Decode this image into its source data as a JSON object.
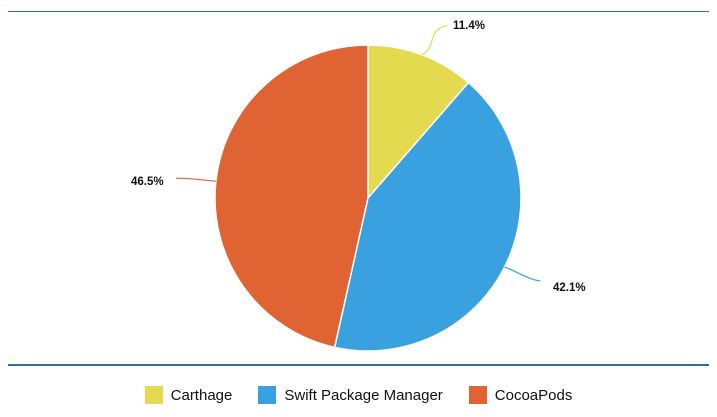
{
  "chart_data": {
    "type": "pie",
    "title": "",
    "start_angle_deg": 0,
    "slices": [
      {
        "label": "Carthage",
        "value": 11.4,
        "display": "11.4%",
        "color": "#e3da50"
      },
      {
        "label": "Swift Package Manager",
        "value": 42.1,
        "display": "42.1%",
        "color": "#3aa1e0"
      },
      {
        "label": "CocoaPods",
        "value": 46.5,
        "display": "46.5%",
        "color": "#e06333"
      }
    ],
    "legend": {
      "position": "bottom",
      "items": [
        "Carthage",
        "Swift Package Manager",
        "CocoaPods"
      ]
    },
    "data_labels": true,
    "grid": false
  },
  "colors": {
    "rule": "#2f6f9f",
    "leader_line": "#777777"
  }
}
